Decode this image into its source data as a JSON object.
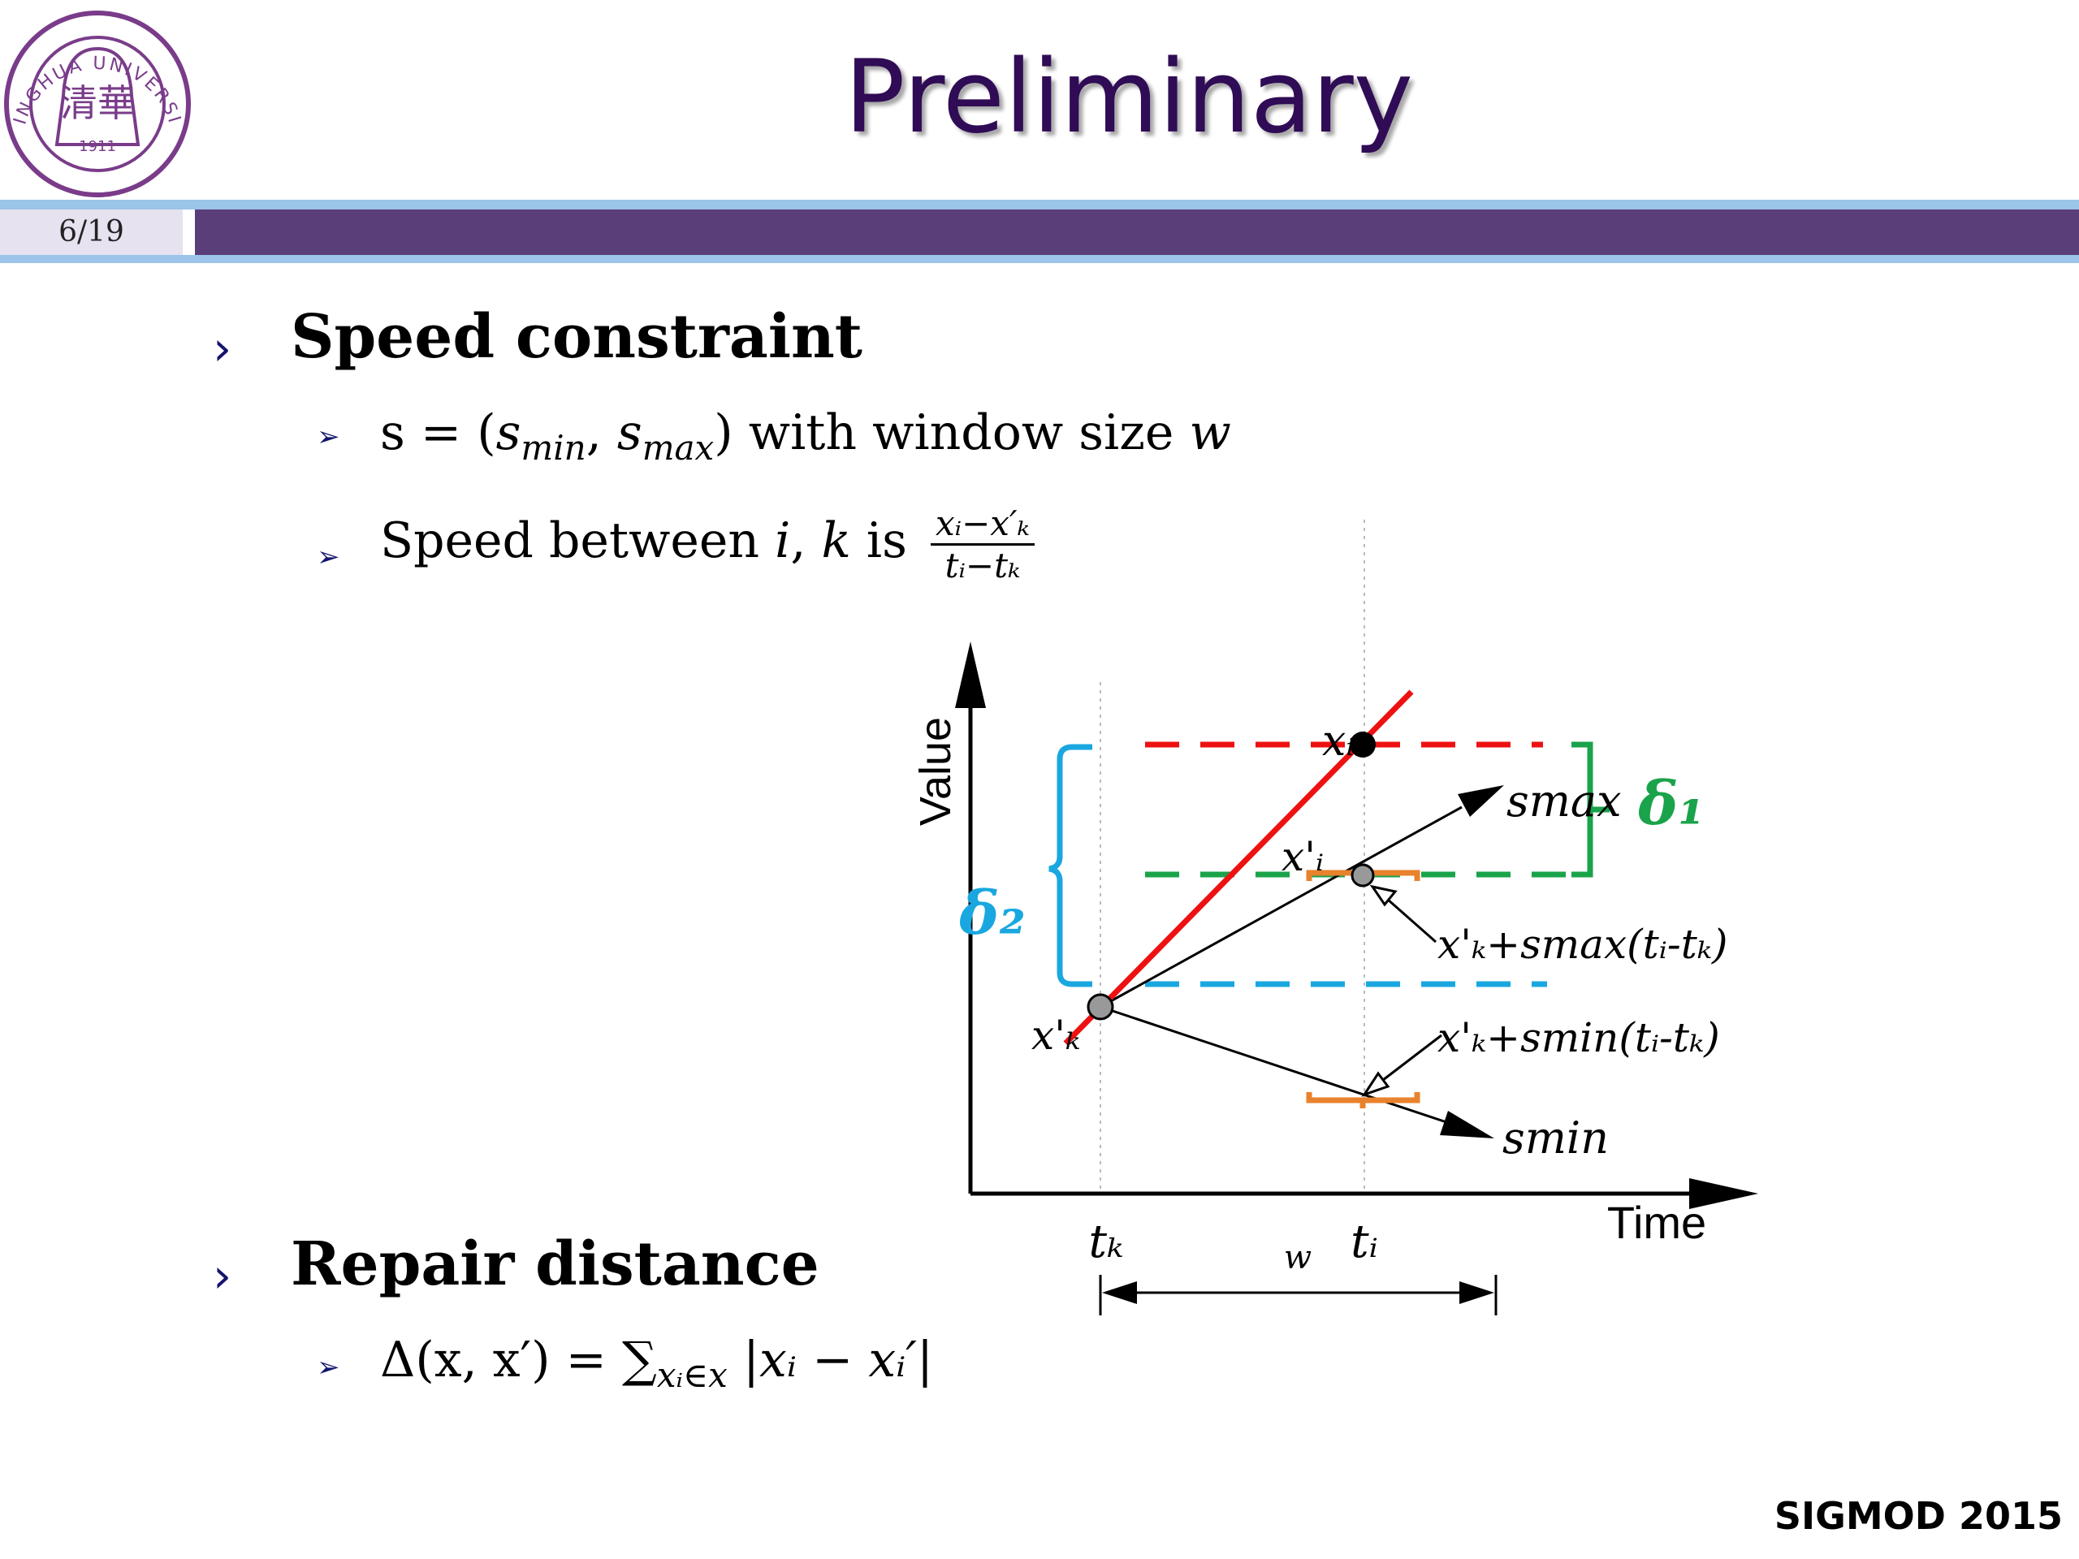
{
  "slide": {
    "title": "Preliminary",
    "page_number": "6/19",
    "footer": "SIGMOD 2015",
    "logo": {
      "text_top": "TSINGHUA UNIVERSITY",
      "year": "1911",
      "chinese": "清華"
    }
  },
  "sections": [
    {
      "heading": "Speed constraint"
    },
    {
      "heading": "Repair distance"
    }
  ],
  "speed": {
    "s_prefix": "s = (",
    "s_min_base": "s",
    "s_min_sub": "min",
    "comma": ", ",
    "s_max_base": "s",
    "s_max_sub": "max",
    "s_suffix": ") with window size ",
    "w": "w",
    "between_prefix": "Speed between ",
    "i": "i",
    "comma2": ", ",
    "k": "k",
    "is": " is",
    "frac_num": "xᵢ−x′ₖ",
    "frac_den": "tᵢ−tₖ"
  },
  "repair": {
    "formula_prefix": "Δ(x, x′) = ∑",
    "sum_sub": "xᵢ∈x",
    "formula_suffix": " |xᵢ − xᵢ′|"
  },
  "diagram": {
    "y_axis": "Value",
    "x_axis": "Time",
    "t_k": "tₖ",
    "t_i": "tᵢ",
    "w": "w",
    "x_i": "xᵢ",
    "x_prime_i": "x'ᵢ",
    "x_prime_k": "x'ₖ",
    "s_max": "smax",
    "s_min": "smin",
    "delta1": "δ₁",
    "delta2": "δ₂",
    "expr_max": "x'ₖ+smax(tᵢ-tₖ)",
    "expr_min": "x'ₖ+smin(tᵢ-tₖ)",
    "colors": {
      "red": "#ee1111",
      "green": "#1aa34a",
      "blue": "#1aa7e0",
      "orange": "#e9822c"
    }
  }
}
